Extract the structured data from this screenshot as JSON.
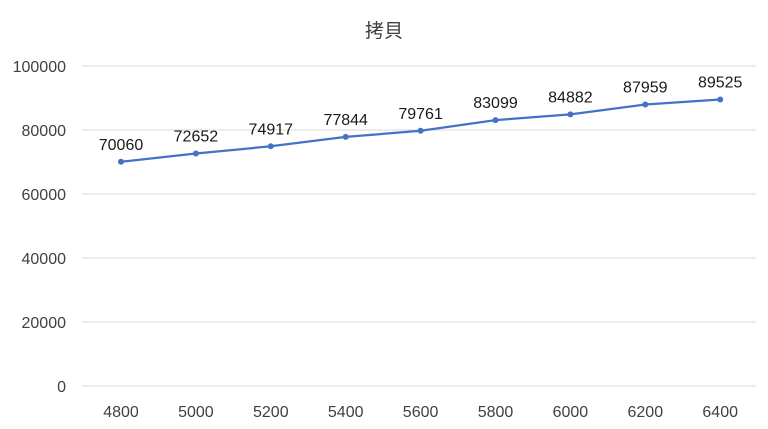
{
  "chart_data": {
    "type": "line",
    "title": "拷貝",
    "xlabel": "",
    "ylabel": "",
    "categories": [
      "4800",
      "5000",
      "5200",
      "5400",
      "5600",
      "5800",
      "6000",
      "6200",
      "6400"
    ],
    "series": [
      {
        "values": [
          70060,
          72652,
          74917,
          77844,
          79761,
          83099,
          84882,
          87959,
          89525
        ]
      }
    ],
    "ylim": [
      0,
      100000
    ],
    "yticks": [
      0,
      20000,
      40000,
      60000,
      80000,
      100000
    ],
    "grid": true,
    "legend": "none",
    "data_labels": true,
    "color": "#4472c4"
  }
}
